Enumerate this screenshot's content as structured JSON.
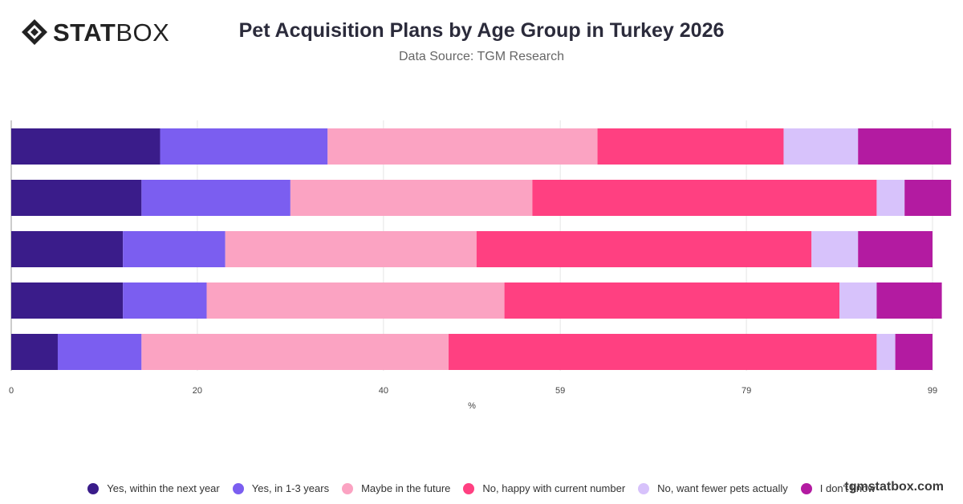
{
  "brand": {
    "logo_bold": "STAT",
    "logo_light": "BOX",
    "watermark": "tgmstatbox.com"
  },
  "header": {
    "title": "Pet Acquisition Plans by Age Group in Turkey 2026",
    "subtitle": "Data Source: TGM Research"
  },
  "chart_data": {
    "type": "bar",
    "orientation": "horizontal",
    "stacked": true,
    "title": "Pet Acquisition Plans by Age Group in Turkey 2026",
    "subtitle": "Data Source: TGM Research",
    "xlabel": "%",
    "ylabel": "",
    "xlim": [
      0,
      99
    ],
    "xticks": [
      0,
      20,
      40,
      59,
      79,
      99
    ],
    "categories": [
      "",
      "",
      "",
      "",
      ""
    ],
    "grid": "vertical",
    "legend_position": "bottom",
    "series": [
      {
        "name": "Yes, within the next year",
        "color": "#3a1c8a",
        "values": [
          16,
          14,
          12,
          12,
          5
        ]
      },
      {
        "name": "Yes, in 1-3 years",
        "color": "#7b5ef0",
        "values": [
          18,
          16,
          11,
          9,
          9
        ]
      },
      {
        "name": "Maybe in the future",
        "color": "#fba3c2",
        "values": [
          29,
          26,
          27,
          32,
          33
        ]
      },
      {
        "name": "No, happy with current number",
        "color": "#ff4081",
        "values": [
          20,
          37,
          36,
          36,
          46
        ]
      },
      {
        "name": "No, want fewer pets actually",
        "color": "#d7c2fb",
        "values": [
          8,
          3,
          5,
          4,
          2
        ]
      },
      {
        "name": "I don't know",
        "color": "#b31ba1",
        "values": [
          10,
          5,
          8,
          7,
          4
        ]
      }
    ]
  }
}
